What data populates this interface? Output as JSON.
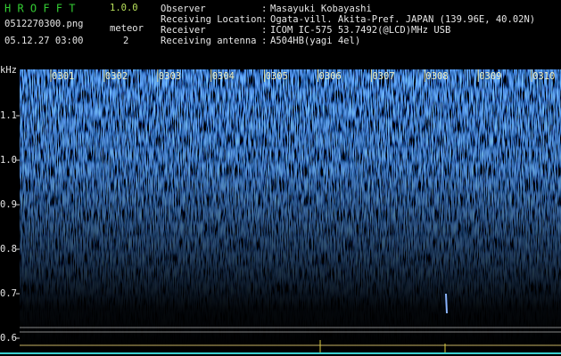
{
  "header": {
    "app": "H R O F F T",
    "version": "1.0.0",
    "file": "0512270300.png",
    "meteor_label": "meteor",
    "datetime": "05.12.27 03:00",
    "meteor_count": "2"
  },
  "info": {
    "separator": ":",
    "rows": [
      {
        "label": "Observer",
        "value": "Masayuki Kobayashi"
      },
      {
        "label": "Receiving Location",
        "value": "Ogata-vill. Akita-Pref. JAPAN (139.96E, 40.02N)"
      },
      {
        "label": "Receiver",
        "value": "ICOM IC-575 53.7492(@LCD)MHz USB"
      },
      {
        "label": "Receiving antenna",
        "value": "A504HB(yagi 4el)"
      }
    ]
  },
  "axis": {
    "unit": "kHz",
    "ticks": [
      "1.1",
      "1.0",
      "0.9",
      "0.8",
      "0.7",
      "0.6"
    ],
    "minutes": [
      "0301",
      "0302",
      "0303",
      "0304",
      "0305",
      "0306",
      "0307",
      "0308",
      "0309",
      "0310"
    ]
  }
}
